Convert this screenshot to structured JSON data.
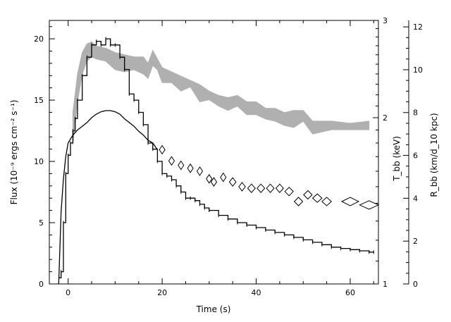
{
  "chart_data": {
    "type": "line",
    "xlabel": "Time (s)",
    "ylabel_left": "Flux (10⁻⁹ ergs cm⁻² s⁻¹)",
    "ylabel_mid": "T_bb (keV)",
    "ylabel_right": "R_bb (km/d_10 kpc)",
    "xlim": [
      -4,
      66
    ],
    "ylim_left": [
      0,
      21.5
    ],
    "ylim_mid": [
      1,
      3
    ],
    "ylim_right": [
      0,
      12.3
    ],
    "x_ticks": [
      0,
      20,
      40,
      60
    ],
    "y_ticks_left": [
      0,
      5,
      10,
      15,
      20
    ],
    "y_ticks_mid": [
      1,
      2,
      3
    ],
    "y_ticks_right": [
      0,
      2,
      4,
      6,
      8,
      10,
      12
    ],
    "mid_scale": "log",
    "grid": false,
    "legend": "none",
    "colors": {
      "flux": "#000000",
      "temperature": "#000000",
      "radius": "#b0b0b0"
    },
    "series": [
      {
        "kind": "flux_histogram",
        "x": [
          -2,
          -1.5,
          -1,
          -0.5,
          0,
          0.5,
          1,
          1.5,
          2,
          3,
          4,
          5,
          6,
          7,
          8,
          9,
          10,
          11,
          12,
          13,
          14,
          15,
          16,
          17,
          18,
          19,
          20,
          21,
          22,
          23,
          24,
          25,
          26,
          27,
          28,
          29,
          30,
          32,
          34,
          36,
          38,
          40,
          42,
          44,
          46,
          48,
          50,
          52,
          54,
          56,
          58,
          60,
          62,
          64,
          65
        ],
        "y": [
          0.5,
          1,
          5,
          9,
          10.5,
          11.5,
          12.5,
          13.5,
          15,
          17,
          18.5,
          19.5,
          19.8,
          19.5,
          20,
          19.5,
          19.5,
          18.5,
          17.5,
          15.5,
          15,
          14,
          13,
          11.5,
          11,
          10,
          9,
          8.8,
          8.5,
          8,
          7.5,
          7,
          7,
          6.8,
          6.5,
          6.2,
          6,
          5.6,
          5.3,
          5,
          4.8,
          4.6,
          4.4,
          4.2,
          4,
          3.8,
          3.6,
          3.4,
          3.2,
          3,
          2.9,
          2.8,
          2.7,
          2.6,
          2.6
        ]
      },
      {
        "kind": "temperature_line",
        "x": [
          -2,
          -1.5,
          -1,
          -0.5,
          0,
          0.5,
          1,
          2,
          3,
          4,
          5,
          6,
          7,
          8,
          9,
          10,
          11,
          12,
          13,
          14,
          15,
          16,
          17,
          18,
          19
        ],
        "y": [
          1.0,
          1.35,
          1.55,
          1.7,
          1.8,
          1.83,
          1.86,
          1.9,
          1.93,
          1.96,
          2.0,
          2.03,
          2.05,
          2.06,
          2.06,
          2.05,
          2.03,
          1.99,
          1.96,
          1.93,
          1.89,
          1.86,
          1.82,
          1.8,
          1.75
        ]
      },
      {
        "kind": "temperature_diamonds",
        "x": [
          20,
          22,
          24,
          26,
          28,
          30,
          31,
          33,
          35,
          37,
          39,
          41,
          43,
          45,
          47,
          49,
          51,
          53,
          55,
          60,
          64
        ],
        "y": [
          1.75,
          1.67,
          1.64,
          1.62,
          1.6,
          1.55,
          1.53,
          1.56,
          1.53,
          1.5,
          1.49,
          1.49,
          1.49,
          1.49,
          1.47,
          1.41,
          1.45,
          1.43,
          1.41,
          1.41,
          1.39
        ],
        "diamond_half_width_s": [
          0.3,
          0.3,
          0.4,
          0.5,
          0.5,
          0.6,
          0.6,
          0.6,
          0.7,
          0.7,
          0.8,
          0.8,
          0.8,
          0.8,
          0.9,
          0.9,
          0.9,
          1.0,
          1.0,
          1.8,
          2.0
        ]
      },
      {
        "kind": "radius_band",
        "x": [
          1,
          2,
          3,
          4,
          5,
          6,
          8,
          10,
          12,
          14,
          16,
          17,
          18,
          19,
          20,
          22,
          24,
          26,
          28,
          30,
          32,
          34,
          36,
          38,
          40,
          42,
          44,
          46,
          48,
          50,
          52,
          56,
          60,
          64
        ],
        "y_low": [
          6.5,
          8.5,
          9.8,
          10.4,
          10.6,
          10.5,
          10.4,
          10.0,
          9.9,
          10.0,
          9.8,
          9.6,
          10.2,
          10.0,
          9.4,
          9.4,
          9.0,
          9.2,
          8.5,
          8.6,
          8.3,
          8.1,
          8.3,
          7.9,
          7.9,
          7.7,
          7.6,
          7.4,
          7.3,
          7.6,
          7.0,
          7.2,
          7.2,
          7.2
        ],
        "y_high": [
          8.0,
          9.8,
          10.8,
          11.2,
          11.3,
          11.1,
          11.0,
          10.8,
          10.7,
          10.6,
          10.6,
          10.3,
          10.9,
          10.5,
          10.1,
          9.9,
          9.7,
          9.5,
          9.3,
          9.0,
          8.8,
          8.7,
          8.8,
          8.5,
          8.5,
          8.2,
          8.2,
          8.0,
          8.1,
          8.1,
          7.6,
          7.6,
          7.5,
          7.6
        ]
      }
    ]
  }
}
